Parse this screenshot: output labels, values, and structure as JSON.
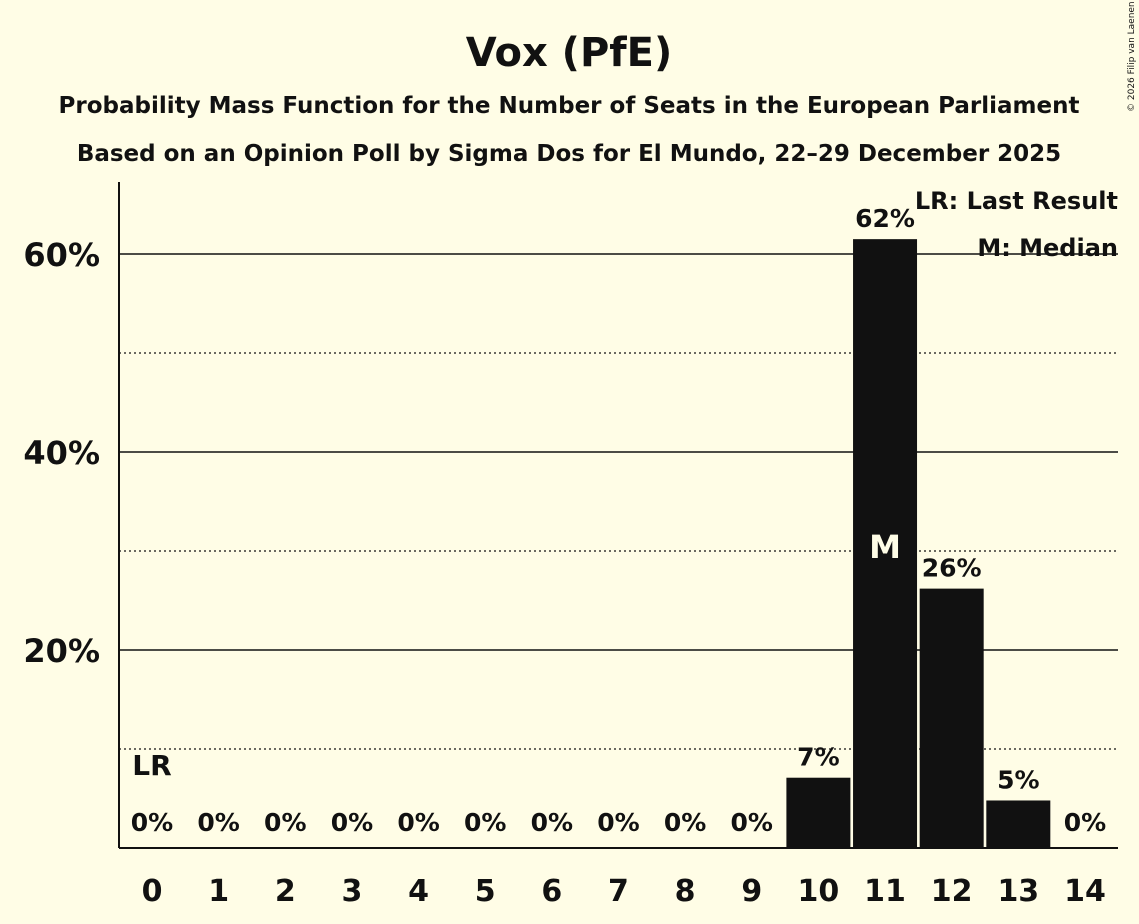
{
  "chart_data": {
    "type": "bar",
    "title": "Vox (PfE)",
    "subtitle": "Probability Mass Function for the Number of Seats in the European Parliament",
    "subtitle2": "Based on an Opinion Poll by Sigma Dos for El Mundo, 22–29 December 2025",
    "copyright": "© 2026 Filip van Laenen",
    "xlabel": "",
    "ylabel": "",
    "ylim": [
      0,
      67
    ],
    "yticks": [
      20,
      40,
      60
    ],
    "ytick_labels": [
      "20%",
      "40%",
      "60%"
    ],
    "minor_gridlines": [
      10,
      30,
      50
    ],
    "categories": [
      "0",
      "1",
      "2",
      "3",
      "4",
      "5",
      "6",
      "7",
      "8",
      "9",
      "10",
      "11",
      "12",
      "13",
      "14"
    ],
    "values": [
      0,
      0,
      0,
      0,
      0,
      0,
      0,
      0,
      0,
      0,
      7.1,
      61.5,
      26.2,
      4.8,
      0
    ],
    "data_labels": [
      "0%",
      "0%",
      "0%",
      "0%",
      "0%",
      "0%",
      "0%",
      "0%",
      "0%",
      "0%",
      "7%",
      "62%",
      "26%",
      "5%",
      "0%"
    ],
    "last_result_index": 0,
    "last_result_label": "LR",
    "median_index": 11,
    "median_label": "M",
    "legend": [
      "LR: Last Result",
      "M: Median"
    ],
    "legend_position": "top-right",
    "bar_color": "#111111",
    "background": "#fffde6"
  }
}
